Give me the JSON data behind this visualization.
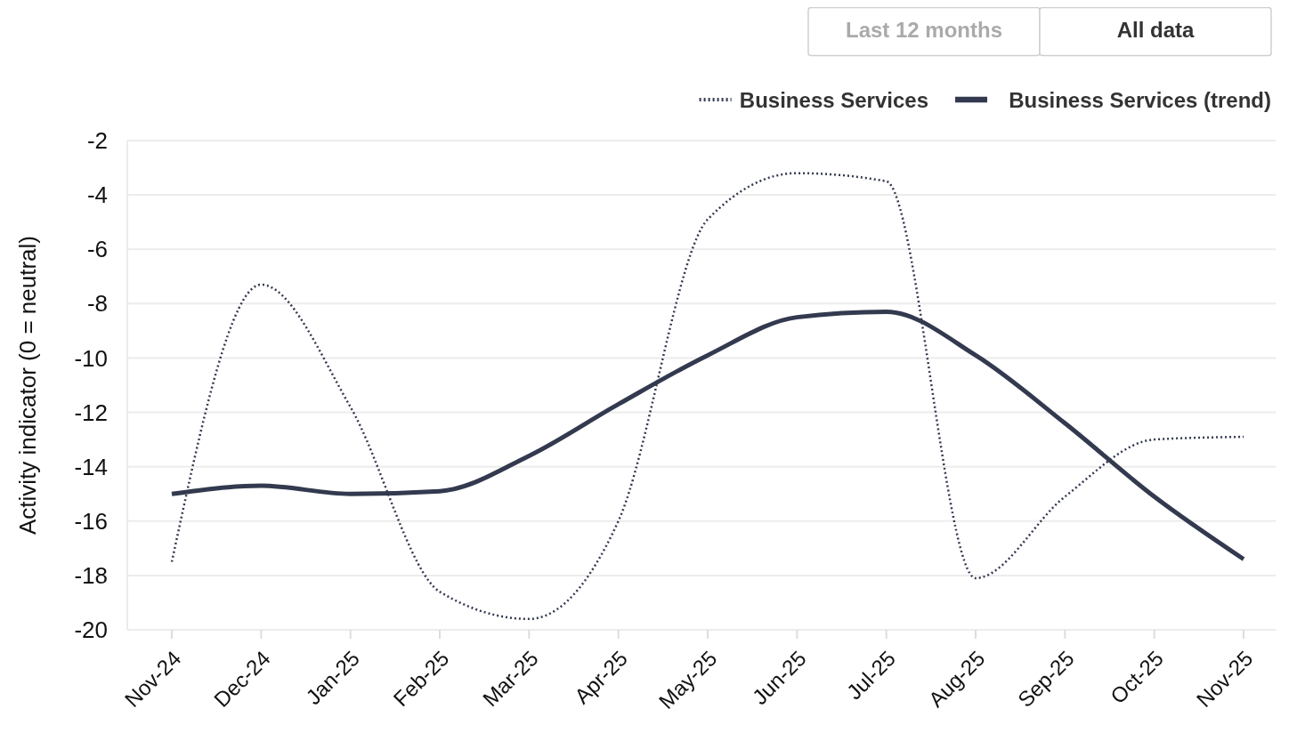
{
  "chart_data": {
    "type": "line",
    "ylabel": "Activity indicator (0 = neutral)",
    "categories": [
      "Nov-24",
      "Dec-24",
      "Jan-25",
      "Feb-25",
      "Mar-25",
      "Apr-25",
      "May-25",
      "Jun-25",
      "Jul-25",
      "Aug-25",
      "Sep-25",
      "Oct-25",
      "Nov-25"
    ],
    "series": [
      {
        "name": "Business Services",
        "color": "#333a4f",
        "line_style": "dotted",
        "values": [
          -17.5,
          -7.3,
          -11.8,
          -18.6,
          -19.6,
          -16.0,
          -4.9,
          -3.2,
          -3.5,
          -18.1,
          -15.1,
          -13.0,
          -12.9
        ]
      },
      {
        "name": "Business Services (trend)",
        "color": "#333a4f",
        "line_style": "solid",
        "values": [
          -15.0,
          -14.7,
          -15.0,
          -14.9,
          -13.6,
          -11.7,
          -9.9,
          -8.5,
          -8.3,
          -9.9,
          -12.4,
          -15.1,
          -17.4
        ]
      }
    ],
    "ylim": [
      -20,
      -2
    ],
    "yticks": [
      -20,
      -18,
      -16,
      -14,
      -12,
      -10,
      -8,
      -6,
      -4,
      -2
    ],
    "grid": "y",
    "legend": "top right",
    "marker": "none",
    "annotations": [
      "Last 12 months",
      "All data"
    ]
  }
}
